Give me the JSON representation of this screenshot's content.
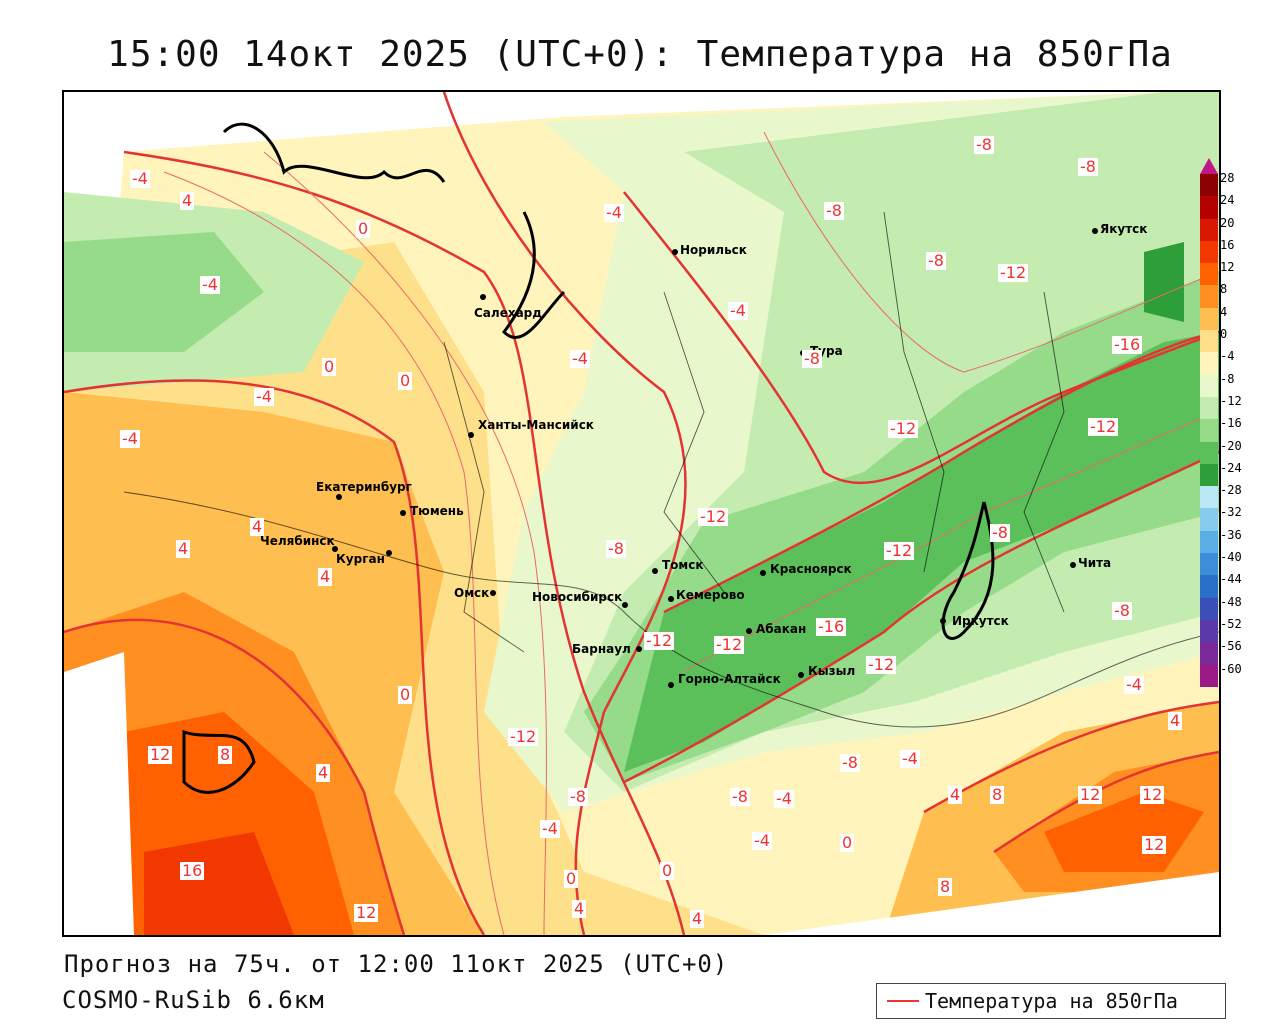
{
  "title": "15:00 14окт 2025 (UTC+0): Температура на 850гПа",
  "forecast_line": "Прогноз на 75ч. от 12:00 11окт 2025 (UTC+0)",
  "model_line": "COSMO-RuSib 6.6км",
  "legend_label": "Температура на 850гПа",
  "cities": [
    {
      "name": "Норильск"
    },
    {
      "name": "Якутск"
    },
    {
      "name": "Салехард"
    },
    {
      "name": "Тура"
    },
    {
      "name": "Ханты-Мансийск"
    },
    {
      "name": "Екатеринбург"
    },
    {
      "name": "Тюмень"
    },
    {
      "name": "Челябинск"
    },
    {
      "name": "Курган"
    },
    {
      "name": "Омск"
    },
    {
      "name": "Томск"
    },
    {
      "name": "Красноярск"
    },
    {
      "name": "Новосибирск"
    },
    {
      "name": "Кемерово"
    },
    {
      "name": "Абакан"
    },
    {
      "name": "Барнаул"
    },
    {
      "name": "Иркутск"
    },
    {
      "name": "Чита"
    },
    {
      "name": "Горно-Алтайск"
    },
    {
      "name": "Кызыл"
    }
  ],
  "contour_labels": [
    "-4",
    "4",
    "0",
    "-4",
    "0",
    "-4",
    "-4",
    "4",
    "4",
    "4",
    "0",
    "-4",
    "-8",
    "-4",
    "-4",
    "-8",
    "-8",
    "-12",
    "-8",
    "-8",
    "-12",
    "-16",
    "-12",
    "-12",
    "-12",
    "-12",
    "-8",
    "-8",
    "-12",
    "-16",
    "-12",
    "-8",
    "-12",
    "-8",
    "-4",
    "-8",
    "-4",
    "-8",
    "-4",
    "-4",
    "-4",
    "0",
    "4",
    "8",
    "12",
    "12",
    "12",
    "8",
    "16",
    "12",
    "4",
    "4",
    "0",
    "0",
    "4",
    "12",
    "8",
    "4",
    "0"
  ],
  "scale": {
    "ticks": [
      "28",
      "24",
      "20",
      "16",
      "12",
      "8",
      "4",
      "0",
      "-4",
      "-8",
      "-12",
      "-16",
      "-20",
      "-24",
      "-28",
      "-32",
      "-36",
      "-40",
      "-44",
      "-48",
      "-52",
      "-56",
      "-60"
    ],
    "colors": [
      "#8b0000",
      "#b50000",
      "#d81800",
      "#f03800",
      "#ff6000",
      "#ff8f20",
      "#ffbf50",
      "#ffe08a",
      "#fff4bb",
      "#e8f8cc",
      "#c4ecb0",
      "#96db8a",
      "#5cc05a",
      "#2e9e38",
      "#bce7f5",
      "#86ccee",
      "#5aaee6",
      "#3c8ed8",
      "#2a6fc8",
      "#3a4fb8",
      "#5a3aa8",
      "#7a2a98",
      "#9a1a88"
    ]
  },
  "colors": {
    "contour": "#e33333",
    "border": "#000000"
  }
}
